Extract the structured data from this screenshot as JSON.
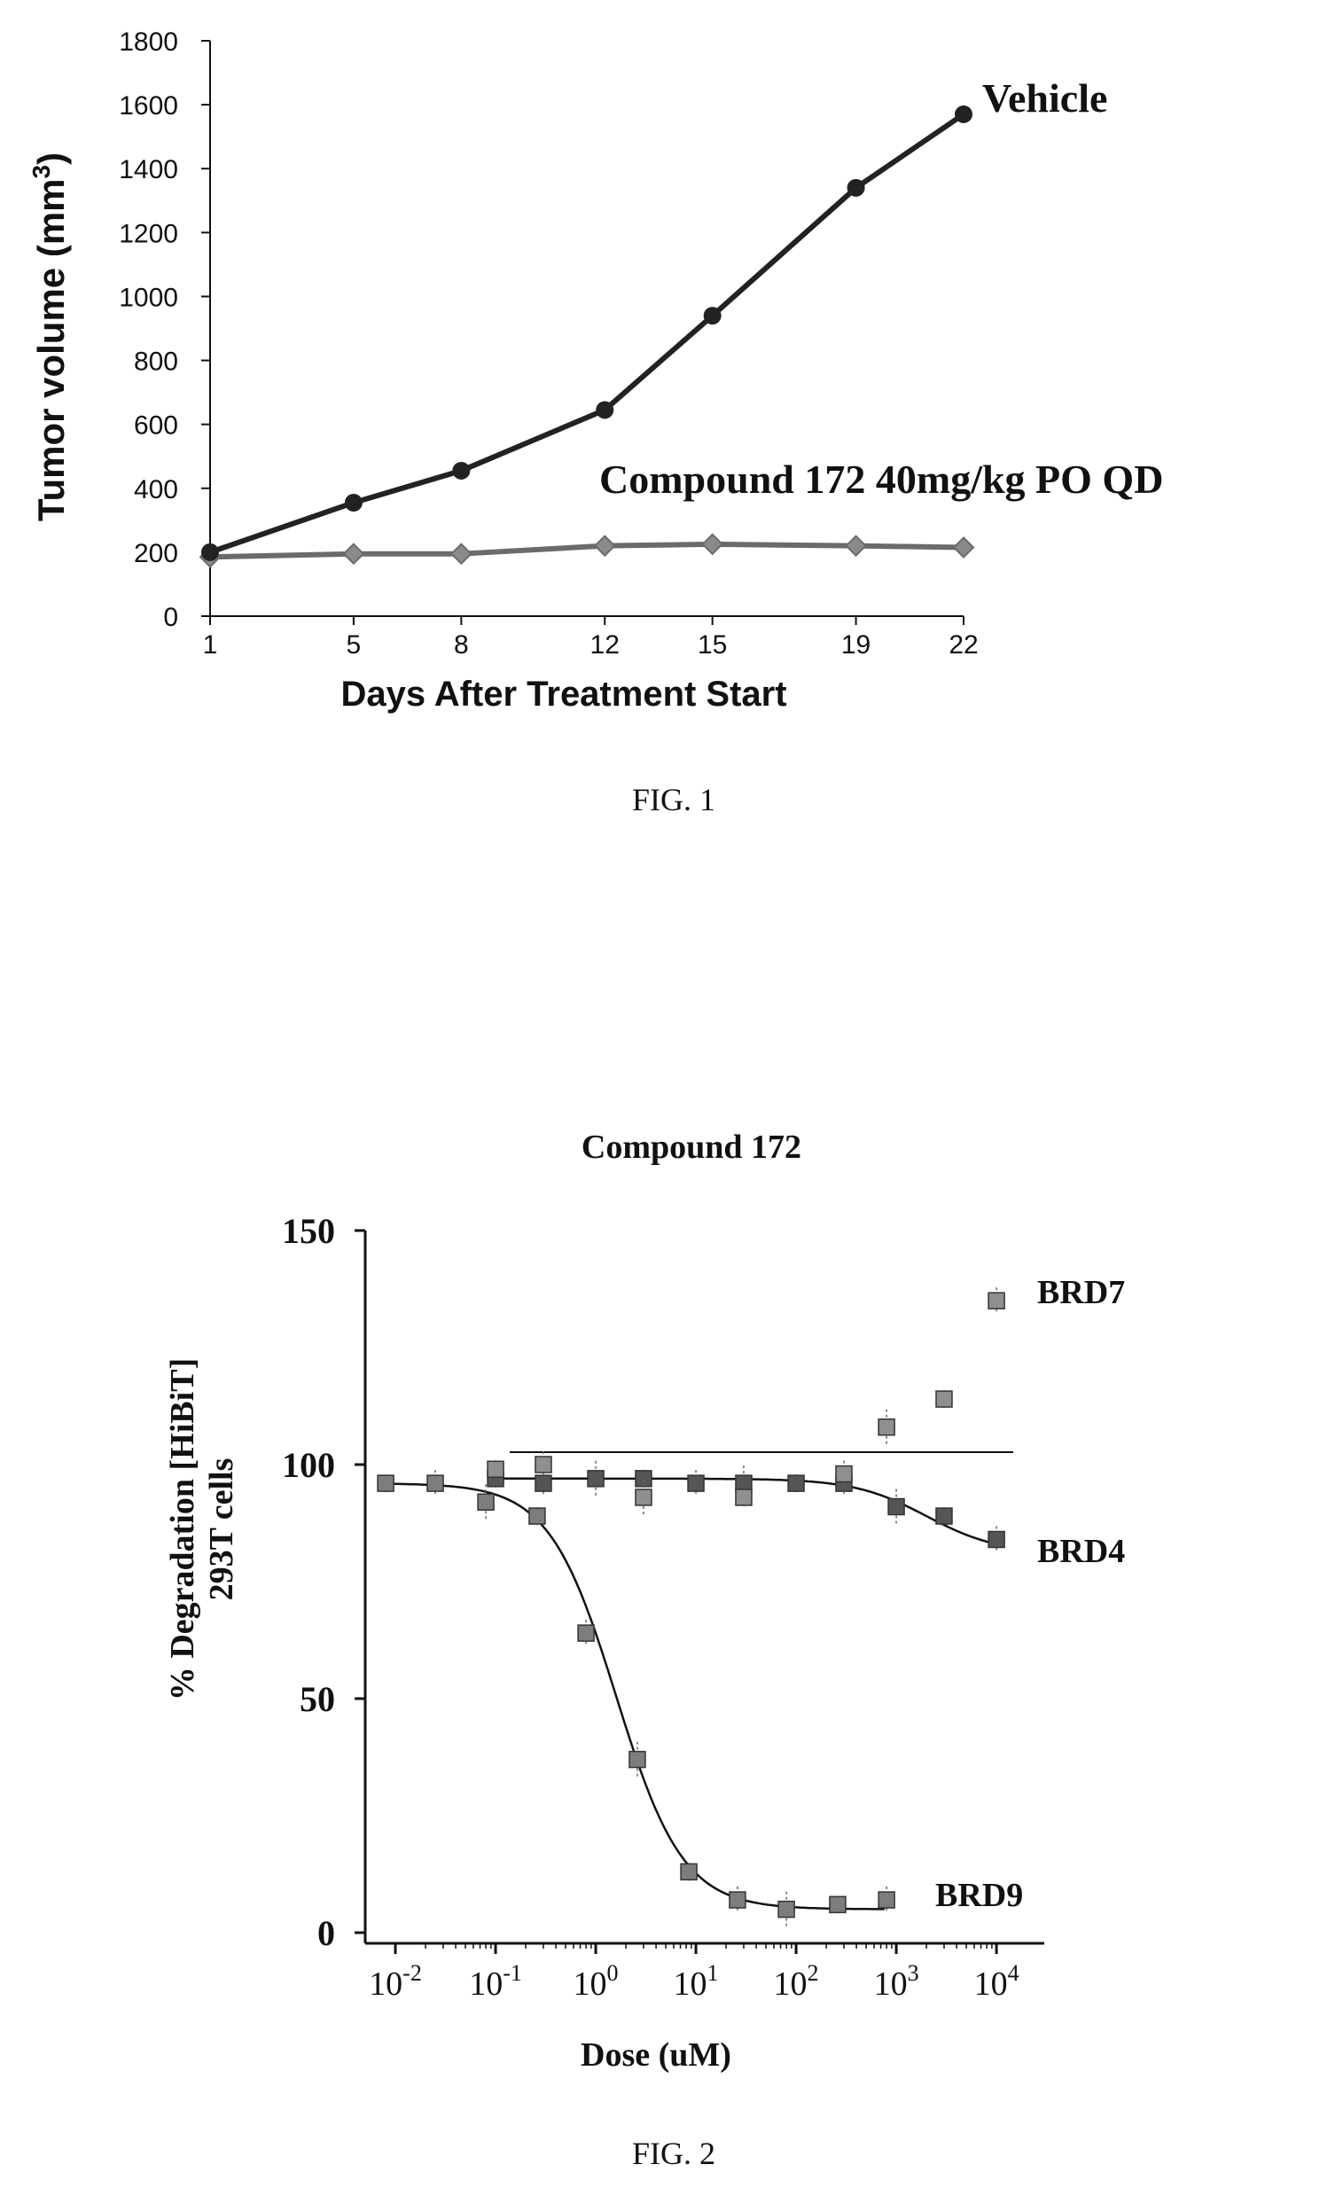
{
  "colors": {
    "ink": "#111111",
    "series_dark": "#222222",
    "series_grey": "#6b6b6b",
    "marker_grey": "#8a8a8a"
  },
  "chart_data": [
    {
      "type": "line",
      "title": "",
      "xlabel": "Days After Treatment Start",
      "ylabel": "Tumor volume (mm",
      "ylabel_sup": "3",
      "ylabel_close": ")",
      "x": [
        1,
        5,
        8,
        12,
        15,
        19,
        22
      ],
      "xticks": [
        "1",
        "5",
        "8",
        "12",
        "15",
        "19",
        "22"
      ],
      "yticks": [
        "0",
        "200",
        "400",
        "600",
        "800",
        "1000",
        "1200",
        "1400",
        "1600",
        "1800"
      ],
      "ylim": [
        0,
        1800
      ],
      "grid": false,
      "series": [
        {
          "name": "Vehicle",
          "marker": "circle",
          "values": [
            200,
            355,
            455,
            645,
            940,
            1340,
            1570
          ]
        },
        {
          "name": "Compound 172 40mg/kg PO QD",
          "marker": "diamond",
          "values": [
            185,
            195,
            195,
            220,
            225,
            220,
            215
          ]
        }
      ],
      "caption": "FIG. 1"
    },
    {
      "type": "scatter",
      "title": "Compound 172",
      "xlabel": "Dose (uM)",
      "ylabel": "% Degradation [HiBiT]",
      "ylabel2": "293T cells",
      "xscale": "log",
      "xlim": [
        0.005,
        30000
      ],
      "ylim": [
        0,
        150
      ],
      "xticks": [
        {
          "base": "10",
          "exp": "-2",
          "value": 0.01
        },
        {
          "base": "10",
          "exp": "-1",
          "value": 0.1
        },
        {
          "base": "10",
          "exp": "0",
          "value": 1
        },
        {
          "base": "10",
          "exp": "1",
          "value": 10
        },
        {
          "base": "10",
          "exp": "2",
          "value": 100
        },
        {
          "base": "10",
          "exp": "3",
          "value": 1000
        },
        {
          "base": "10",
          "exp": "4",
          "value": 10000
        }
      ],
      "yticks": [
        "0",
        "50",
        "100",
        "150"
      ],
      "grid": false,
      "series": [
        {
          "name": "BRD9",
          "x": [
            0.008,
            0.025,
            0.08,
            0.26,
            0.8,
            2.6,
            8.5,
            26,
            80,
            260,
            800
          ],
          "values": [
            96,
            96,
            92,
            89,
            64,
            37,
            13,
            7,
            5,
            6,
            7
          ],
          "fit": true
        },
        {
          "name": "BRD4",
          "x": [
            0.1,
            0.3,
            1,
            3,
            10,
            30,
            100,
            300,
            1000,
            3000,
            10000
          ],
          "values": [
            97,
            96,
            97,
            97,
            96,
            96,
            96,
            96,
            91,
            89,
            84
          ],
          "fit": true
        },
        {
          "name": "BRD7",
          "x": [
            0.1,
            0.3,
            3,
            30,
            300,
            800,
            3000,
            10000
          ],
          "values": [
            99,
            100,
            93,
            93,
            98,
            108,
            114,
            135
          ],
          "fit": false
        }
      ],
      "caption": "FIG. 2"
    }
  ]
}
